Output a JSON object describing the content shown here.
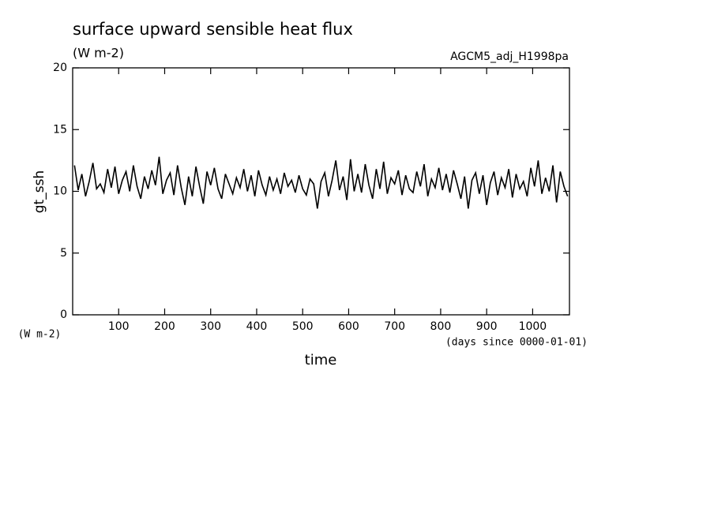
{
  "chart_data": {
    "type": "line",
    "title": "surface upward sensible heat flux",
    "subtitle": "(W m-2)",
    "annotation": "AGCM5_adj_H1998pa",
    "ylabel": "gt_ssh",
    "yunit": "(W m-2)",
    "xlabel": "time",
    "xunit": "(days since 0000-01-01)",
    "xlim": [
      0,
      1080
    ],
    "ylim": [
      0,
      20
    ],
    "xticks": [
      100,
      200,
      300,
      400,
      500,
      600,
      700,
      800,
      900,
      1000
    ],
    "yticks": [
      0,
      5,
      10,
      15,
      20
    ],
    "color": "#000000",
    "x": [
      4,
      12,
      20,
      28,
      36,
      44,
      52,
      60,
      68,
      76,
      84,
      92,
      100,
      108,
      116,
      124,
      132,
      140,
      148,
      156,
      164,
      172,
      180,
      188,
      196,
      204,
      212,
      220,
      228,
      236,
      244,
      252,
      260,
      268,
      276,
      284,
      292,
      300,
      308,
      316,
      324,
      332,
      340,
      348,
      356,
      364,
      372,
      380,
      388,
      396,
      404,
      412,
      420,
      428,
      436,
      444,
      452,
      460,
      468,
      476,
      484,
      492,
      500,
      508,
      516,
      524,
      532,
      540,
      548,
      556,
      564,
      572,
      580,
      588,
      596,
      604,
      612,
      620,
      628,
      636,
      644,
      652,
      660,
      668,
      676,
      684,
      692,
      700,
      708,
      716,
      724,
      732,
      740,
      748,
      756,
      764,
      772,
      780,
      788,
      796,
      804,
      812,
      820,
      828,
      836,
      844,
      852,
      860,
      868,
      876,
      884,
      892,
      900,
      908,
      916,
      924,
      932,
      940,
      948,
      956,
      964,
      972,
      980,
      988,
      996,
      1004,
      1012,
      1020,
      1028,
      1036,
      1044,
      1052,
      1060,
      1068,
      1076
    ],
    "values": [
      12.1,
      10.1,
      11.4,
      9.6,
      10.8,
      12.3,
      10.2,
      10.6,
      9.9,
      11.8,
      10.3,
      12.0,
      9.8,
      10.9,
      11.6,
      10.0,
      12.1,
      10.4,
      9.4,
      11.2,
      10.2,
      11.7,
      10.5,
      12.8,
      9.8,
      10.9,
      11.5,
      9.7,
      12.1,
      10.3,
      8.9,
      11.2,
      9.6,
      12.0,
      10.4,
      9.0,
      11.6,
      10.5,
      11.9,
      10.2,
      9.4,
      11.4,
      10.6,
      9.8,
      11.1,
      10.3,
      11.8,
      10.0,
      11.3,
      9.6,
      11.7,
      10.5,
      9.7,
      11.2,
      10.1,
      11.0,
      9.8,
      11.5,
      10.4,
      10.9,
      9.9,
      11.3,
      10.2,
      9.7,
      11.0,
      10.6,
      8.6,
      10.8,
      11.5,
      9.6,
      10.9,
      12.5,
      10.1,
      11.2,
      9.3,
      12.6,
      10.0,
      11.4,
      9.9,
      12.2,
      10.5,
      9.4,
      11.8,
      10.2,
      12.4,
      9.8,
      11.1,
      10.6,
      11.7,
      9.7,
      11.3,
      10.2,
      9.9,
      11.6,
      10.4,
      12.2,
      9.6,
      11.0,
      10.3,
      11.9,
      10.1,
      11.4,
      9.9,
      11.7,
      10.6,
      9.4,
      11.2,
      8.6,
      10.9,
      11.5,
      9.8,
      11.3,
      8.9,
      10.7,
      11.6,
      9.7,
      11.1,
      10.3,
      11.8,
      9.5,
      11.4,
      10.2,
      10.8,
      9.6,
      11.9,
      10.4,
      12.5,
      9.8,
      11.1,
      10.0,
      12.1,
      9.1,
      11.6,
      10.4,
      9.6
    ]
  }
}
